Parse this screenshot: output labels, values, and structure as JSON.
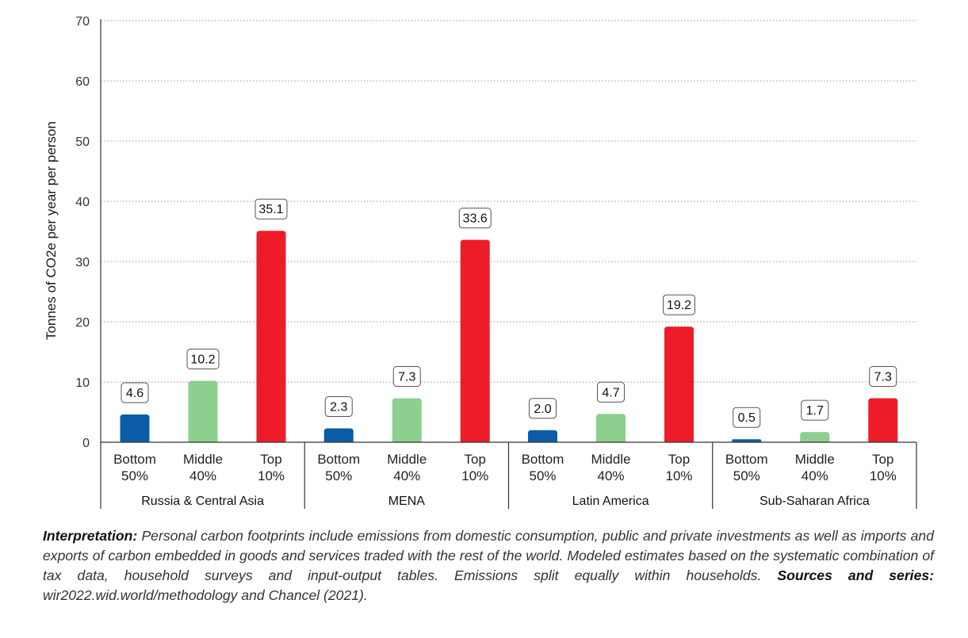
{
  "chart_data": {
    "type": "bar",
    "title": "",
    "ylabel": "Tonnes of CO2e per year per person",
    "ylim": [
      0,
      70
    ],
    "yticks": [
      "0",
      "10",
      "20",
      "30",
      "40",
      "50",
      "60",
      "70"
    ],
    "grid": true,
    "category_labels": [
      {
        "line1": "Bottom",
        "line2": "50%"
      },
      {
        "line1": "Middle",
        "line2": "40%"
      },
      {
        "line1": "Top",
        "line2": "10%"
      }
    ],
    "colors": {
      "Bottom 50%": "#0b5ca7",
      "Middle 40%": "#8ccf8f",
      "Top 10%": "#ee1c28"
    },
    "groups": [
      {
        "name": "Russia & Central Asia",
        "values": [
          4.6,
          10.2,
          35.1
        ],
        "labels": [
          "4.6",
          "10.2",
          "35.1"
        ]
      },
      {
        "name": "MENA",
        "values": [
          2.3,
          7.3,
          33.6
        ],
        "labels": [
          "2.3",
          "7.3",
          "33.6"
        ]
      },
      {
        "name": "Latin America",
        "values": [
          2.0,
          4.7,
          19.2
        ],
        "labels": [
          "2.0",
          "4.7",
          "19.2"
        ]
      },
      {
        "name": "Sub-Saharan Africa",
        "values": [
          0.5,
          1.7,
          7.3
        ],
        "labels": [
          "0.5",
          "1.7",
          "7.3"
        ]
      }
    ]
  },
  "caption": {
    "interpretation_label": "Interpretation:",
    "interpretation_text": " Personal carbon footprints include emissions from domestic consumption, public and private investments as well as imports and exports of carbon embedded in goods and services traded with the rest of the world. Modeled estimates based on the systematic combination of tax data, household surveys and input-output tables. Emissions split equally within households. ",
    "sources_label": "Sources and series:",
    "sources_text": " wir2022.wid.world/methodology and Chancel (2021)."
  }
}
